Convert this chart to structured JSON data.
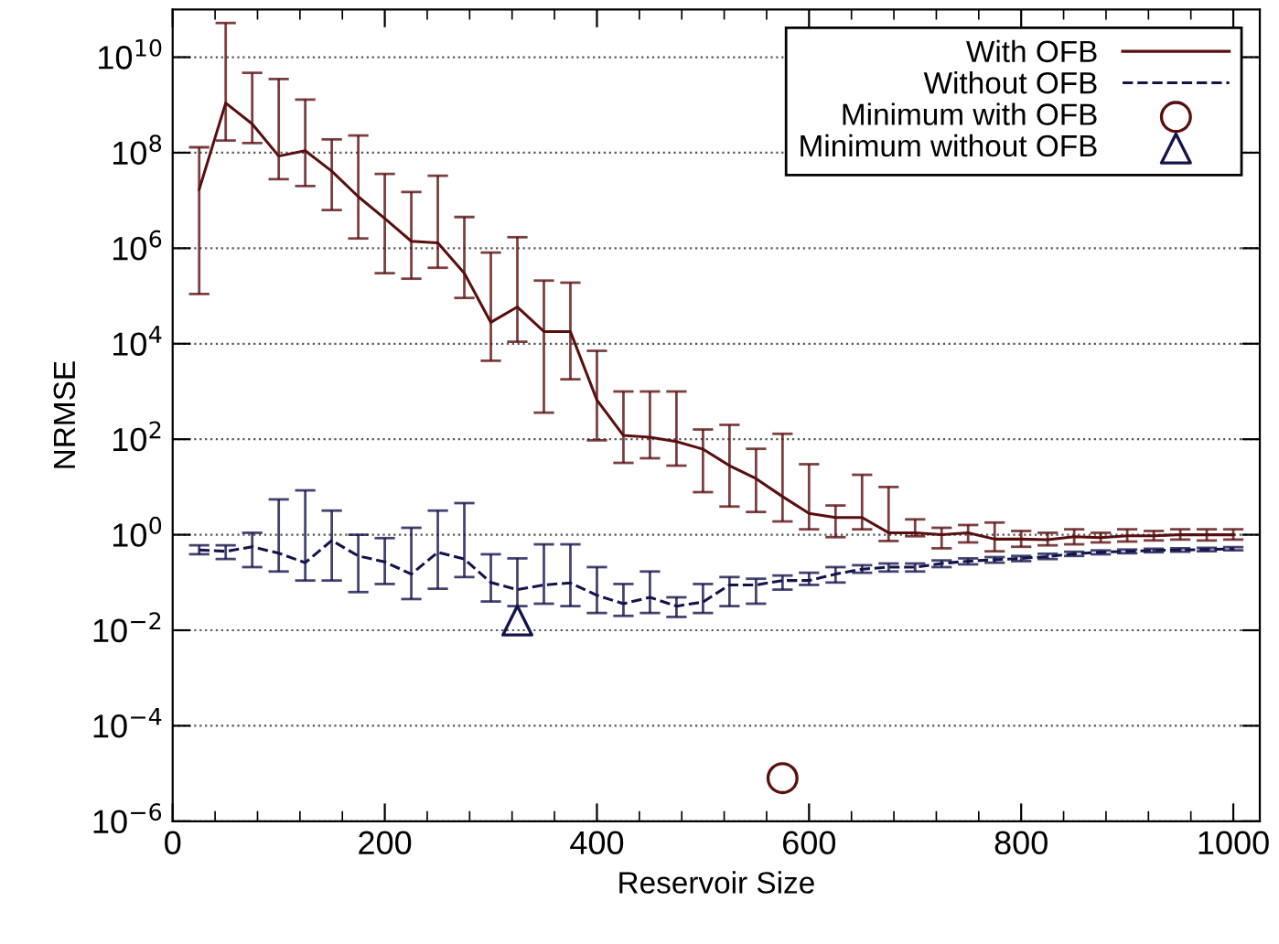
{
  "chart_data": {
    "type": "line",
    "xlabel": "Reservoir Size",
    "ylabel": "NRMSE",
    "log": "y",
    "grid": "y",
    "legend": "top right",
    "xlim": [
      0,
      1025
    ],
    "xticks": [
      0,
      200,
      400,
      600,
      800,
      1000
    ],
    "ylim": [
      1e-06,
      100000000000.0
    ],
    "yticks": [
      {
        "value": 1e-06,
        "label": "10$^{−6}$"
      },
      {
        "value": 0.0001,
        "label": "10$^{−4}$"
      },
      {
        "value": 0.01,
        "label": "10$^{−2}$"
      },
      {
        "value": 1,
        "label": "10$^{0}$"
      },
      {
        "value": 100,
        "label": "10$^{2}$"
      },
      {
        "value": 10000.0,
        "label": "10$^{4}$"
      },
      {
        "value": 1000000.0,
        "label": "10$^{6}$"
      },
      {
        "value": 100000000.0,
        "label": "10$^{8}$"
      },
      {
        "value": 10000000000.0,
        "label": "10$^{10}$"
      }
    ],
    "x": [
      25,
      50,
      75,
      100,
      125,
      150,
      175,
      200,
      225,
      250,
      275,
      300,
      325,
      350,
      375,
      400,
      425,
      450,
      475,
      500,
      525,
      550,
      575,
      600,
      625,
      650,
      675,
      700,
      725,
      750,
      775,
      800,
      825,
      850,
      875,
      900,
      925,
      950,
      975,
      1000
    ],
    "series": [
      {
        "name": "With OFB",
        "color": "#5a0f0f",
        "line_style": "solid",
        "marker": "none",
        "values": [
          17000000.0,
          1100000000.0,
          400000000.0,
          85000000.0,
          110000000.0,
          41000000.0,
          12000000.0,
          4200000.0,
          1400000.0,
          1300000.0,
          300000.0,
          28000.0,
          59000.0,
          18000.0,
          18000.0,
          660,
          120,
          110,
          89,
          62,
          28,
          15,
          6.3,
          2.8,
          2.3,
          2.3,
          1.1,
          1.1,
          1.0,
          1.1,
          0.81,
          0.81,
          0.79,
          0.91,
          0.87,
          0.95,
          0.95,
          1.0,
          1.0,
          1.0
        ],
        "errors": [
          [
            110000.0,
            130000000.0
          ],
          [
            180000000.0,
            52000000000.0
          ],
          [
            160000000.0,
            4700000000.0
          ],
          [
            28000000.0,
            3500000000.0
          ],
          [
            20000000.0,
            1300000000.0
          ],
          [
            6300000.0,
            190000000.0
          ],
          [
            1600000.0,
            230000000.0
          ],
          [
            300000.0,
            36000000.0
          ],
          [
            230000.0,
            15000000.0
          ],
          [
            390000.0,
            33000000.0
          ],
          [
            91000.0,
            4500000.0
          ],
          [
            4400.0,
            810000.0
          ],
          [
            11000.0,
            1700000.0
          ],
          [
            360,
            210000.0
          ],
          [
            1800.0,
            190000.0
          ],
          [
            95,
            7100.0
          ],
          [
            32,
            1000.0
          ],
          [
            40,
            1000.0
          ],
          [
            28,
            1000.0
          ],
          [
            7.8,
            160
          ],
          [
            3.9,
            200
          ],
          [
            3,
            63
          ],
          [
            1.9,
            130
          ],
          [
            1.3,
            30
          ],
          [
            0.89,
            4.1
          ],
          [
            1.3,
            18
          ],
          [
            0.74,
            10
          ],
          [
            0.93,
            2.1
          ],
          [
            0.52,
            1.4
          ],
          [
            0.69,
            1.6
          ],
          [
            0.45,
            1.8
          ],
          [
            0.56,
            1.2
          ],
          [
            0.6,
            1.1
          ],
          [
            0.63,
            1.3
          ],
          [
            0.69,
            1.1
          ],
          [
            0.72,
            1.3
          ],
          [
            0.76,
            1.2
          ],
          [
            0.79,
            1.3
          ],
          [
            0.76,
            1.3
          ],
          [
            0.79,
            1.3
          ]
        ]
      },
      {
        "name": "Without OFB",
        "color": "#14144d",
        "line_style": "dashed",
        "marker": "none",
        "values": [
          0.48,
          0.45,
          0.56,
          0.41,
          0.26,
          0.76,
          0.36,
          0.27,
          0.15,
          0.43,
          0.31,
          0.1,
          0.071,
          0.089,
          0.098,
          0.054,
          0.036,
          0.049,
          0.032,
          0.039,
          0.089,
          0.089,
          0.11,
          0.11,
          0.15,
          0.19,
          0.21,
          0.21,
          0.25,
          0.28,
          0.3,
          0.32,
          0.35,
          0.4,
          0.43,
          0.45,
          0.47,
          0.48,
          0.49,
          0.51
        ],
        "errors": [
          [
            0.39,
            0.6
          ],
          [
            0.31,
            0.6
          ],
          [
            0.21,
            1.1
          ],
          [
            0.17,
            5.5
          ],
          [
            0.11,
            8.5
          ],
          [
            0.11,
            3.2
          ],
          [
            0.063,
            1.0
          ],
          [
            0.093,
            0.85
          ],
          [
            0.045,
            1.4
          ],
          [
            0.074,
            3.2
          ],
          [
            0.13,
            4.6
          ],
          [
            0.04,
            0.39
          ],
          [
            0.032,
            0.32
          ],
          [
            0.036,
            0.63
          ],
          [
            0.032,
            0.63
          ],
          [
            0.023,
            0.21
          ],
          [
            0.02,
            0.093
          ],
          [
            0.023,
            0.17
          ],
          [
            0.019,
            0.049
          ],
          [
            0.023,
            0.093
          ],
          [
            0.032,
            0.13
          ],
          [
            0.036,
            0.12
          ],
          [
            0.071,
            0.14
          ],
          [
            0.089,
            0.16
          ],
          [
            0.1,
            0.21
          ],
          [
            0.16,
            0.23
          ],
          [
            0.17,
            0.25
          ],
          [
            0.17,
            0.25
          ],
          [
            0.21,
            0.29
          ],
          [
            0.24,
            0.32
          ],
          [
            0.26,
            0.34
          ],
          [
            0.28,
            0.36
          ],
          [
            0.31,
            0.4
          ],
          [
            0.36,
            0.44
          ],
          [
            0.39,
            0.47
          ],
          [
            0.41,
            0.49
          ],
          [
            0.43,
            0.51
          ],
          [
            0.44,
            0.52
          ],
          [
            0.45,
            0.53
          ],
          [
            0.47,
            0.55
          ]
        ]
      },
      {
        "name": "Minimum with OFB",
        "type": "scatter",
        "color": "#5a0f0f",
        "marker": "circle",
        "x": [
          575
        ],
        "values": [
          8e-06
        ]
      },
      {
        "name": "Minimum without OFB",
        "type": "scatter",
        "color": "#14144d",
        "marker": "triangle",
        "x": [
          325
        ],
        "values": [
          0.016
        ]
      }
    ]
  }
}
